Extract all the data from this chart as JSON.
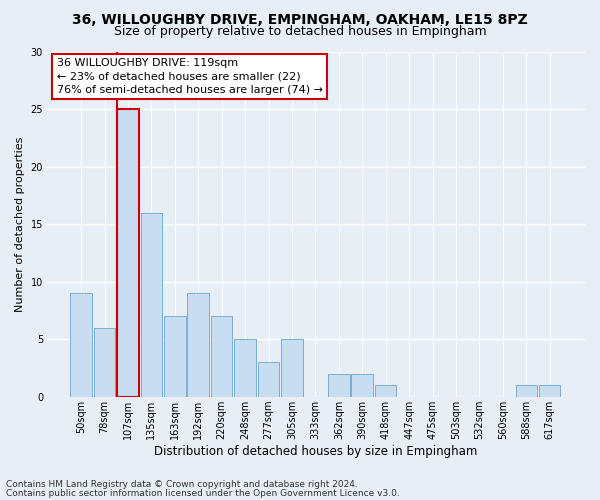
{
  "title": "36, WILLOUGHBY DRIVE, EMPINGHAM, OAKHAM, LE15 8PZ",
  "subtitle": "Size of property relative to detached houses in Empingham",
  "xlabel": "Distribution of detached houses by size in Empingham",
  "ylabel": "Number of detached properties",
  "categories": [
    "50sqm",
    "78sqm",
    "107sqm",
    "135sqm",
    "163sqm",
    "192sqm",
    "220sqm",
    "248sqm",
    "277sqm",
    "305sqm",
    "333sqm",
    "362sqm",
    "390sqm",
    "418sqm",
    "447sqm",
    "475sqm",
    "503sqm",
    "532sqm",
    "560sqm",
    "588sqm",
    "617sqm"
  ],
  "values": [
    9,
    6,
    25,
    16,
    7,
    9,
    7,
    5,
    3,
    5,
    0,
    2,
    2,
    1,
    0,
    0,
    0,
    0,
    0,
    1,
    1
  ],
  "bar_color": "#c9ddf0",
  "bar_edge_color": "#7aaed6",
  "highlight_bar_index": 2,
  "vline_color": "#cc0000",
  "annotation_text": "36 WILLOUGHBY DRIVE: 119sqm\n← 23% of detached houses are smaller (22)\n76% of semi-detached houses are larger (74) →",
  "annotation_box_color": "#ffffff",
  "annotation_box_edge": "#cc0000",
  "ylim": [
    0,
    30
  ],
  "yticks": [
    0,
    5,
    10,
    15,
    20,
    25,
    30
  ],
  "background_color": "#e8eef6",
  "plot_background": "#e8eef6",
  "grid_color": "#ffffff",
  "footer_line1": "Contains HM Land Registry data © Crown copyright and database right 2024.",
  "footer_line2": "Contains public sector information licensed under the Open Government Licence v3.0.",
  "title_fontsize": 10,
  "subtitle_fontsize": 9,
  "xlabel_fontsize": 8.5,
  "ylabel_fontsize": 8,
  "tick_fontsize": 7,
  "annotation_fontsize": 8,
  "footer_fontsize": 6.5
}
